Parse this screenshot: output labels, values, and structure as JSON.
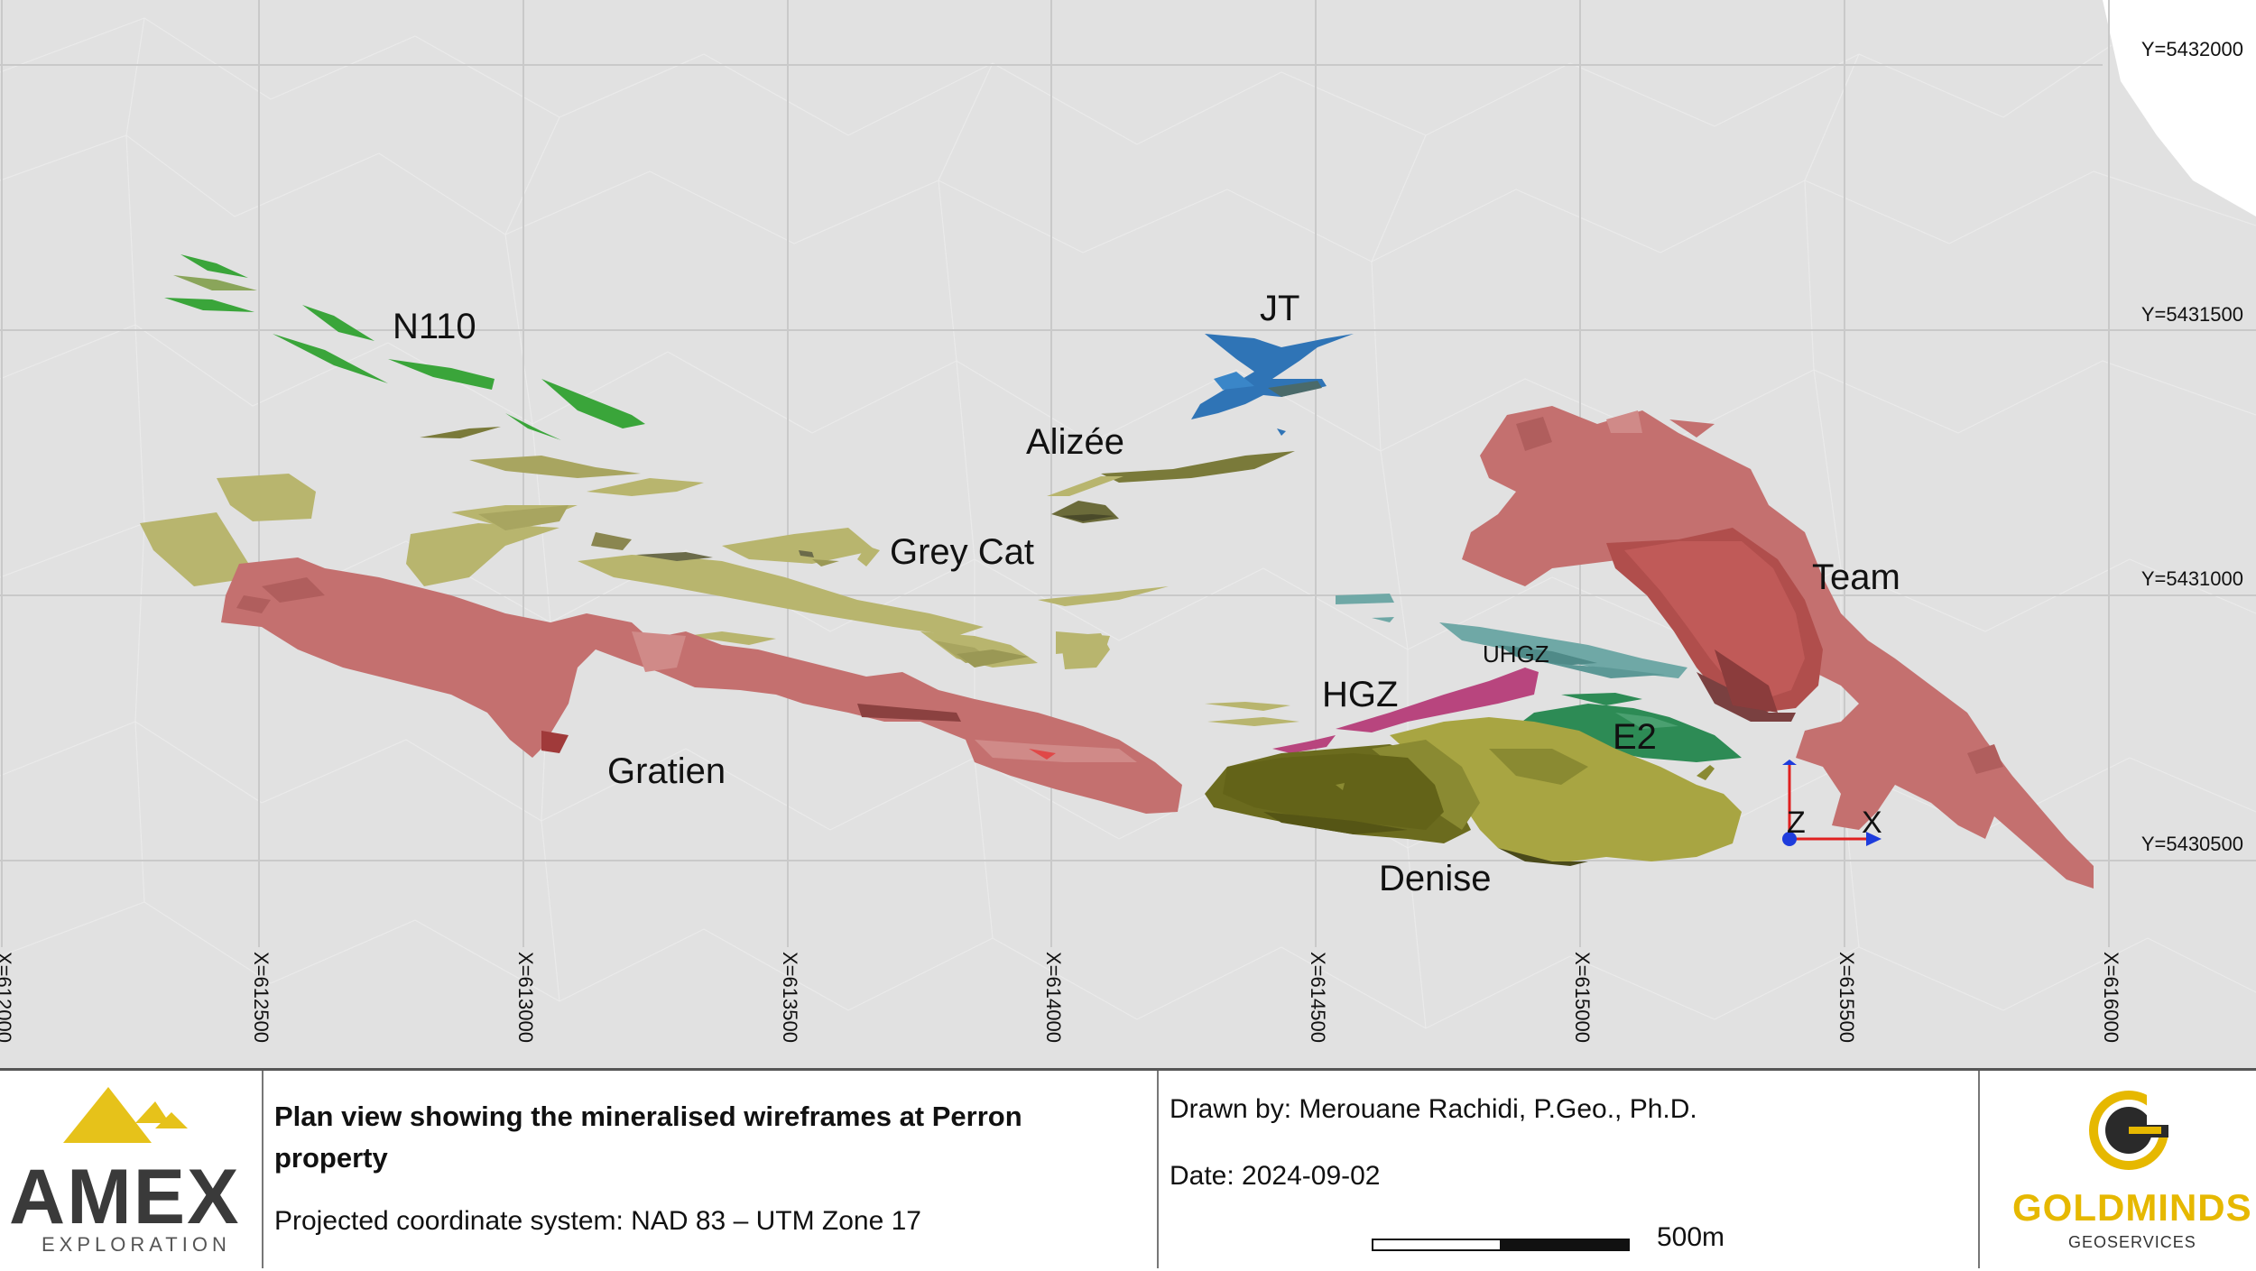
{
  "map": {
    "background_color": "#e1e1e1",
    "grid": true,
    "y_axis_labels": [
      "Y=5432000",
      "Y=5431500",
      "Y=5431000",
      "Y=5430500"
    ],
    "x_axis_labels": [
      "X=612000",
      "X=612500",
      "X=613000",
      "X=613500",
      "X=614000",
      "X=614500",
      "X=615000",
      "X=615500",
      "X=616000"
    ],
    "zone_labels": {
      "n110": "N110",
      "jt": "JT",
      "alizee": "Alizée",
      "grey_cat": "Grey Cat",
      "team": "Team",
      "uhgz": "UHGZ",
      "hgz": "HGZ",
      "e2": "E2",
      "gratien": "Gratien",
      "denise": "Denise"
    },
    "zone_colors": {
      "n110": "#3aa53a",
      "jt": "#2f74b6",
      "alizee": "#7a7a3a",
      "grey_cat": "#b8b56e",
      "team": "#c4706f",
      "team_core": "#b04e4c",
      "uhgz": "#6fa8a6",
      "hgz": "#b8457e",
      "e2": "#2d8b55",
      "gratien": "#c4706f",
      "denise": "#6b6b1e"
    },
    "axis_triad": {
      "z_label": "Z",
      "x_label": "X",
      "z_color": "#e02020",
      "x_color": "#e02020",
      "origin_color": "#1e3cdc"
    }
  },
  "title_block": {
    "title": "Plan view showing the mineralised wireframes at Perron property",
    "coordinate_system": "Projected coordinate system: NAD 83 – UTM Zone 17",
    "drawn_by": "Drawn by: Merouane Rachidi,  P.Geo., Ph.D.",
    "date": "Date: 2024-09-02",
    "scale_label": "500m",
    "left_logo": {
      "word": "AMEX",
      "sub": "EXPLORATION",
      "accent": "#e6c21a"
    },
    "right_logo": {
      "word": "GOLDMINDS",
      "sub": "GEOSERVICES",
      "accent": "#e6b800"
    }
  }
}
